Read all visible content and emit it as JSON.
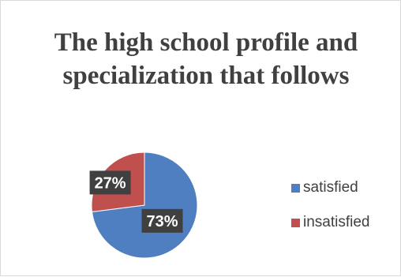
{
  "chart_data": {
    "type": "pie",
    "title": "The high school profile and specialization that follows",
    "categories": [
      "satisfied",
      "insatisfied"
    ],
    "values": [
      73,
      27
    ],
    "data_labels": [
      "73%",
      "27%"
    ],
    "colors": [
      "#4f7fc0",
      "#c0504d"
    ],
    "label_background": "#404040",
    "label_text_color": "#ffffff",
    "start_angle_deg": 0,
    "direction": "clockwise",
    "legend_position": "right"
  }
}
